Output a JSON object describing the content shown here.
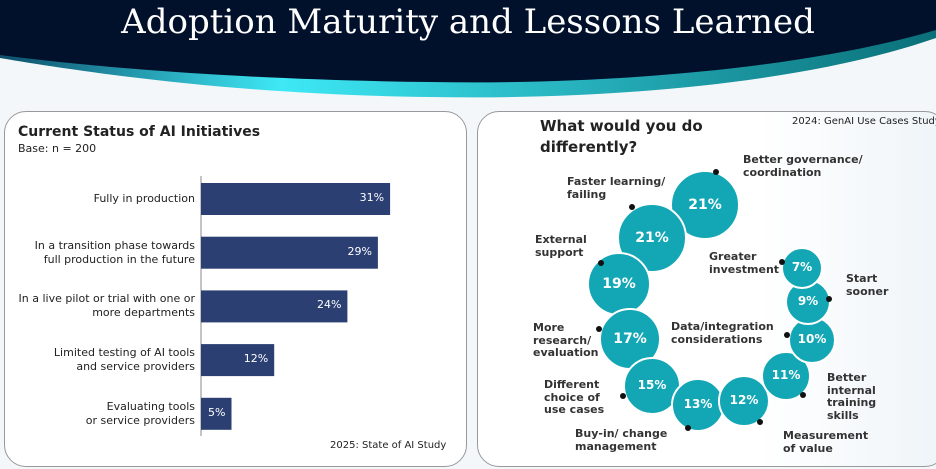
{
  "title": "Adoption Maturity and Lessons Learned",
  "chart_data": [
    {
      "type": "bar",
      "orientation": "horizontal",
      "title": "Current Status of AI Initiatives",
      "subtitle": "Base: n = 200",
      "source": "2025: State of AI Study",
      "categories": [
        [
          "Fully in production"
        ],
        [
          "In a transition phase towards",
          "full production in the future"
        ],
        [
          "In a live pilot or trial with one or",
          "more departments"
        ],
        [
          "Limited testing of AI tools",
          "and service providers"
        ],
        [
          "Evaluating tools",
          "or service providers"
        ]
      ],
      "values": [
        31,
        29,
        24,
        12,
        5
      ],
      "value_suffix": "%",
      "color": "#2b3f73"
    },
    {
      "type": "bubble",
      "title": "What would you do differently?",
      "title_lines": [
        "What would you do",
        "differently?"
      ],
      "source": "2024: GenAI Use Cases Study",
      "items": [
        {
          "label": [
            "Better governance/",
            "coordination"
          ],
          "value": 21
        },
        {
          "label": [
            "Faster learning/",
            "failing"
          ],
          "value": 21
        },
        {
          "label": [
            "External",
            "support"
          ],
          "value": 19
        },
        {
          "label": [
            "More",
            "research/",
            "evaluation"
          ],
          "value": 17
        },
        {
          "label": [
            "Different",
            "choice of",
            "use cases"
          ],
          "value": 15
        },
        {
          "label": [
            "Buy-in/ change",
            "management"
          ],
          "value": 13
        },
        {
          "label": [
            "Measurement",
            "of value"
          ],
          "value": 12
        },
        {
          "label": [
            "Better",
            "internal",
            "training",
            "skills"
          ],
          "value": 11
        },
        {
          "label": [
            "Data/integration",
            "considerations"
          ],
          "value": 10
        },
        {
          "label": [
            "Start",
            "sooner"
          ],
          "value": 9
        },
        {
          "label": [
            "Greater",
            "investment"
          ],
          "value": 7
        }
      ],
      "color": "#13a7b5"
    }
  ]
}
